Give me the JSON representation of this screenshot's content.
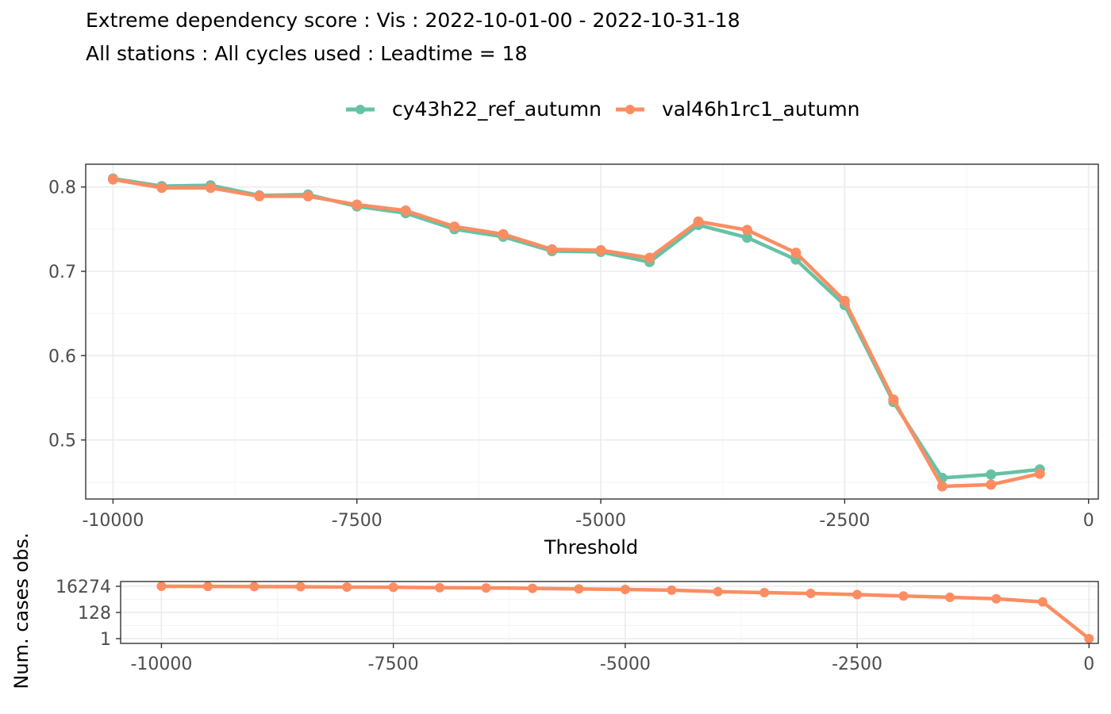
{
  "title": "Extreme dependency score : Vis : 2022-10-01-00 - 2022-10-31-18",
  "subtitle": "All stations : All cycles used : Leadtime = 18",
  "colors": {
    "cy43h22_ref_autumn": "#66c2a5",
    "val46h1rc1_autumn": "#fc8d62"
  },
  "chart_data": [
    {
      "type": "line",
      "xlabel": "Threshold",
      "ylabel": "",
      "xlim": [
        -10280,
        100
      ],
      "ylim": [
        0.43,
        0.827
      ],
      "x_ticks": [
        -10000,
        -7500,
        -5000,
        -2500,
        0
      ],
      "x_tick_labels": [
        "-10000",
        "-7500",
        "-5000",
        "-2500",
        "0"
      ],
      "y_ticks": [
        0.5,
        0.6,
        0.7,
        0.8
      ],
      "y_tick_labels": [
        "0.5",
        "0.6",
        "0.7",
        "0.8"
      ],
      "grid": true,
      "legend": "top",
      "series": [
        {
          "name": "cy43h22_ref_autumn",
          "x": [
            -10000,
            -9500,
            -9000,
            -8500,
            -8000,
            -7500,
            -7000,
            -6500,
            -6000,
            -5500,
            -5000,
            -4500,
            -4000,
            -3500,
            -3000,
            -2500,
            -2000,
            -1500,
            -1000,
            -500
          ],
          "y": [
            0.81,
            0.801,
            0.802,
            0.79,
            0.791,
            0.777,
            0.769,
            0.75,
            0.741,
            0.724,
            0.723,
            0.711,
            0.755,
            0.74,
            0.714,
            0.66,
            0.545,
            0.455,
            0.459,
            0.465
          ]
        },
        {
          "name": "val46h1rc1_autumn",
          "x": [
            -10000,
            -9500,
            -9000,
            -8500,
            -8000,
            -7500,
            -7000,
            -6500,
            -6000,
            -5500,
            -5000,
            -4500,
            -4000,
            -3500,
            -3000,
            -2500,
            -2000,
            -1500,
            -1000,
            -500
          ],
          "y": [
            0.809,
            0.799,
            0.799,
            0.789,
            0.789,
            0.779,
            0.772,
            0.753,
            0.744,
            0.726,
            0.725,
            0.716,
            0.759,
            0.749,
            0.722,
            0.665,
            0.548,
            0.445,
            0.447,
            0.46
          ]
        }
      ]
    },
    {
      "type": "line",
      "xlabel": "",
      "ylabel": "Num. cases obs.",
      "xlim": [
        -10440,
        100
      ],
      "ylim": [
        0.95,
        1.0
      ],
      "y_scale": "log2",
      "x_ticks": [
        -10000,
        -7500,
        -5000,
        -2500,
        0
      ],
      "x_tick_labels": [
        "-10000",
        "-7500",
        "-5000",
        "-2500",
        "0"
      ],
      "y_ticks": [
        1,
        128,
        16274
      ],
      "y_tick_labels": [
        "1",
        "128",
        "16274"
      ],
      "grid": true,
      "series": [
        {
          "name": "val46h1rc1_autumn",
          "x": [
            -10000,
            -9500,
            -9000,
            -8500,
            -8000,
            -7500,
            -7000,
            -6500,
            -6000,
            -5500,
            -5000,
            -4500,
            -4000,
            -3500,
            -3000,
            -2500,
            -2000,
            -1500,
            -1000,
            -500,
            0
          ],
          "y": [
            16274,
            16000,
            15500,
            15000,
            14000,
            13500,
            12500,
            12000,
            11000,
            10000,
            9000,
            8000,
            6000,
            5000,
            4300,
            3500,
            2700,
            2100,
            1600,
            900,
            1
          ]
        }
      ]
    }
  ]
}
